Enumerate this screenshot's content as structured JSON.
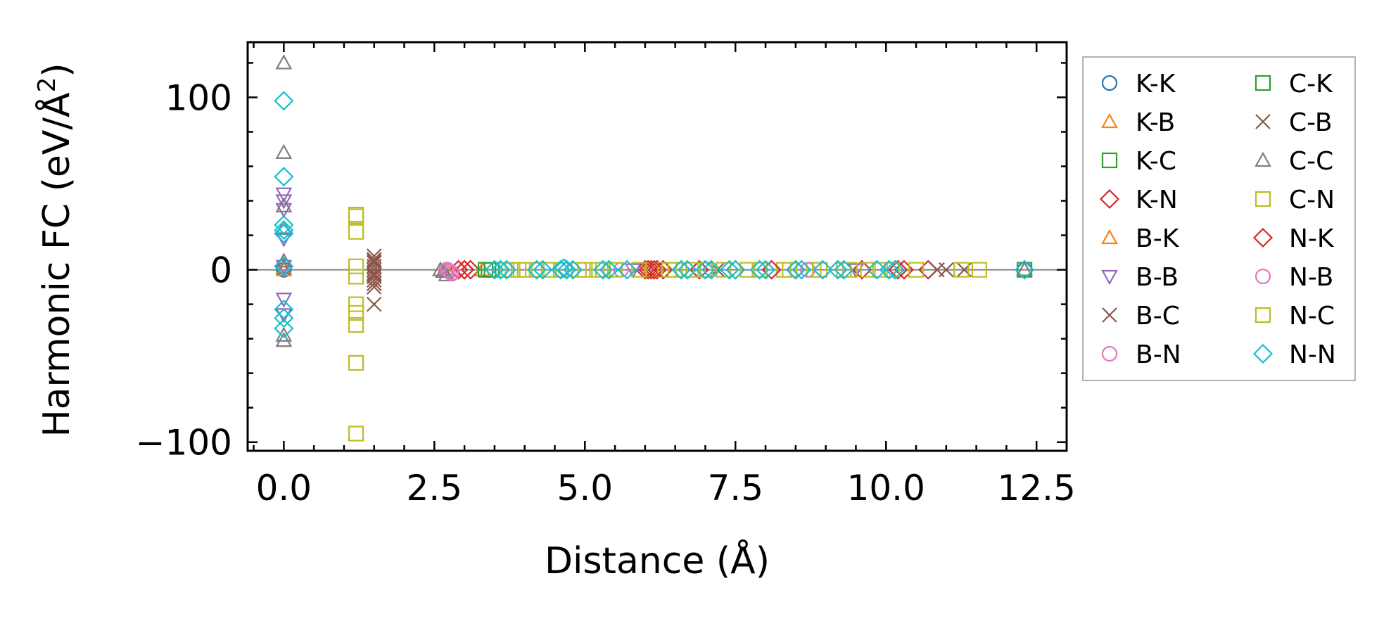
{
  "chart_data": {
    "type": "scatter",
    "xlabel": "Distance (Å)",
    "ylabel": "Harmonic FC (eV/Å²)",
    "ylabel_base": "Harmonic FC (eV/Å",
    "ylabel_sup": "2",
    "ylabel_end": ")",
    "xlim": [
      -0.6,
      13.0
    ],
    "ylim": [
      -105,
      132
    ],
    "x_ticks": [
      0.0,
      2.5,
      5.0,
      7.5,
      10.0,
      12.5
    ],
    "x_tick_labels": [
      "0.0",
      "2.5",
      "5.0",
      "7.5",
      "10.0",
      "12.5"
    ],
    "y_ticks": [
      -100,
      0,
      100
    ],
    "y_tick_labels": [
      "−100",
      "0",
      "100"
    ],
    "x_minor_step": 0.5,
    "y_minor_step": 20,
    "zero_line": true,
    "grid": false,
    "legend_position": "outside-right",
    "series": [
      {
        "name": "K-K",
        "marker": "circle",
        "color": "#1f77b4",
        "x": [
          0,
          0,
          12.3
        ],
        "y": [
          0,
          2,
          0
        ]
      },
      {
        "name": "K-B",
        "marker": "triangle-up",
        "color": "#ff7f0e",
        "x": [
          0,
          12.3
        ],
        "y": [
          0,
          0
        ]
      },
      {
        "name": "K-C",
        "marker": "square",
        "color": "#2ca02c",
        "x": [
          3.4,
          12.3
        ],
        "y": [
          0,
          0
        ]
      },
      {
        "name": "K-N",
        "marker": "diamond",
        "color": "#d62728",
        "x": [
          2.9,
          3.0,
          3.1,
          6.0,
          6.1,
          6.2,
          6.3,
          6.9,
          7.5,
          8.5,
          9.6,
          10.2,
          10.7
        ],
        "y": [
          0,
          0,
          0,
          0,
          0,
          0,
          0,
          0,
          0,
          0,
          0,
          0,
          0
        ]
      },
      {
        "name": "B-K",
        "marker": "triangle-up",
        "color": "#ff7f0e",
        "x": [
          2.7,
          3.3
        ],
        "y": [
          0,
          0
        ]
      },
      {
        "name": "B-B",
        "marker": "triangle-down",
        "color": "#9467bd",
        "x": [
          0,
          0,
          0,
          0,
          0,
          0,
          0,
          5.8,
          9.5
        ],
        "y": [
          44,
          40,
          35,
          18,
          2,
          -17,
          -26,
          0,
          0
        ]
      },
      {
        "name": "B-C",
        "marker": "x",
        "color": "#8c564b",
        "x": [
          1.5,
          1.5,
          1.5,
          1.5,
          1.5,
          1.5,
          1.5,
          1.5,
          1.5,
          1.5,
          1.5,
          10.85,
          11.3
        ],
        "y": [
          8,
          6,
          4,
          2,
          0,
          -2,
          -4,
          -6,
          -8,
          -10,
          -20,
          0,
          0
        ]
      },
      {
        "name": "B-N",
        "marker": "circle",
        "color": "#e377c2",
        "x": [
          2.7,
          2.75,
          2.8,
          5.6
        ],
        "y": [
          0,
          -1,
          -2,
          0
        ]
      },
      {
        "name": "C-K",
        "marker": "square",
        "color": "#2ca02c",
        "x": [
          3.35,
          3.45
        ],
        "y": [
          0,
          0
        ]
      },
      {
        "name": "C-B",
        "marker": "x",
        "color": "#8c564b",
        "x": [
          1.5,
          1.5,
          7.2,
          11.0
        ],
        "y": [
          5,
          -3,
          0,
          0
        ]
      },
      {
        "name": "C-C",
        "marker": "triangle-up",
        "color": "#7f7f7f",
        "x": [
          0,
          0,
          0,
          0,
          0,
          0,
          0,
          0,
          2.6,
          2.65,
          2.7,
          12.3
        ],
        "y": [
          120,
          68,
          37,
          24,
          5,
          1,
          -38,
          -41,
          0,
          -1,
          -3,
          0
        ]
      },
      {
        "name": "C-N",
        "marker": "square",
        "color": "#bcbd22",
        "x": [
          1.2,
          1.2,
          1.2,
          1.2,
          1.2,
          1.2,
          1.2,
          1.2,
          1.2,
          1.2,
          11.25,
          11.55,
          3.8,
          4.0,
          4.4,
          5.0,
          5.3,
          6.1,
          6.5,
          7.0,
          7.7,
          8.3,
          8.8,
          9.4,
          9.9
        ],
        "y": [
          32,
          31,
          22,
          2,
          -4,
          -20,
          -25,
          -32,
          -54,
          -95,
          0,
          0,
          0,
          0,
          0,
          0,
          0,
          0,
          0,
          0,
          0,
          0,
          0,
          0,
          0
        ]
      },
      {
        "name": "N-K",
        "marker": "diamond",
        "color": "#d62728",
        "x": [
          3.0,
          6.05,
          6.15,
          8.1,
          10.3
        ],
        "y": [
          0,
          0,
          0,
          0,
          0
        ]
      },
      {
        "name": "N-B",
        "marker": "circle",
        "color": "#e377c2",
        "x": [
          2.72,
          2.78,
          8.7
        ],
        "y": [
          0,
          -2,
          0
        ]
      },
      {
        "name": "N-C",
        "marker": "square",
        "color": "#bcbd22",
        "x": [
          3.7,
          3.9,
          4.2,
          4.6,
          4.9,
          5.2,
          5.5,
          5.9,
          6.4,
          6.8,
          7.3,
          7.9,
          8.4,
          8.9,
          9.3,
          9.7,
          10.1,
          10.5
        ],
        "y": [
          0,
          0,
          0,
          0,
          0,
          0,
          0,
          0,
          0,
          0,
          0,
          0,
          0,
          0,
          0,
          0,
          0,
          0
        ]
      },
      {
        "name": "N-N",
        "marker": "diamond",
        "color": "#17becf",
        "x": [
          0,
          0,
          0,
          0,
          0,
          0,
          0,
          0,
          0,
          3.5,
          3.6,
          3.7,
          4.2,
          4.3,
          4.6,
          4.65,
          4.7,
          4.8,
          5.3,
          5.4,
          5.7,
          6.6,
          6.7,
          7.0,
          7.1,
          7.4,
          7.5,
          7.9,
          8.0,
          8.5,
          8.6,
          8.95,
          9.2,
          9.3,
          9.85,
          10.05,
          10.15,
          12.3
        ],
        "y": [
          98,
          54,
          26,
          23,
          21,
          2,
          -23,
          -28,
          -34,
          0,
          0,
          0,
          0,
          0,
          0,
          1,
          0,
          0,
          0,
          0,
          0,
          0,
          0,
          0,
          0,
          0,
          0,
          0,
          0,
          0,
          0,
          0,
          0,
          0,
          0,
          0,
          0,
          0
        ]
      }
    ]
  }
}
